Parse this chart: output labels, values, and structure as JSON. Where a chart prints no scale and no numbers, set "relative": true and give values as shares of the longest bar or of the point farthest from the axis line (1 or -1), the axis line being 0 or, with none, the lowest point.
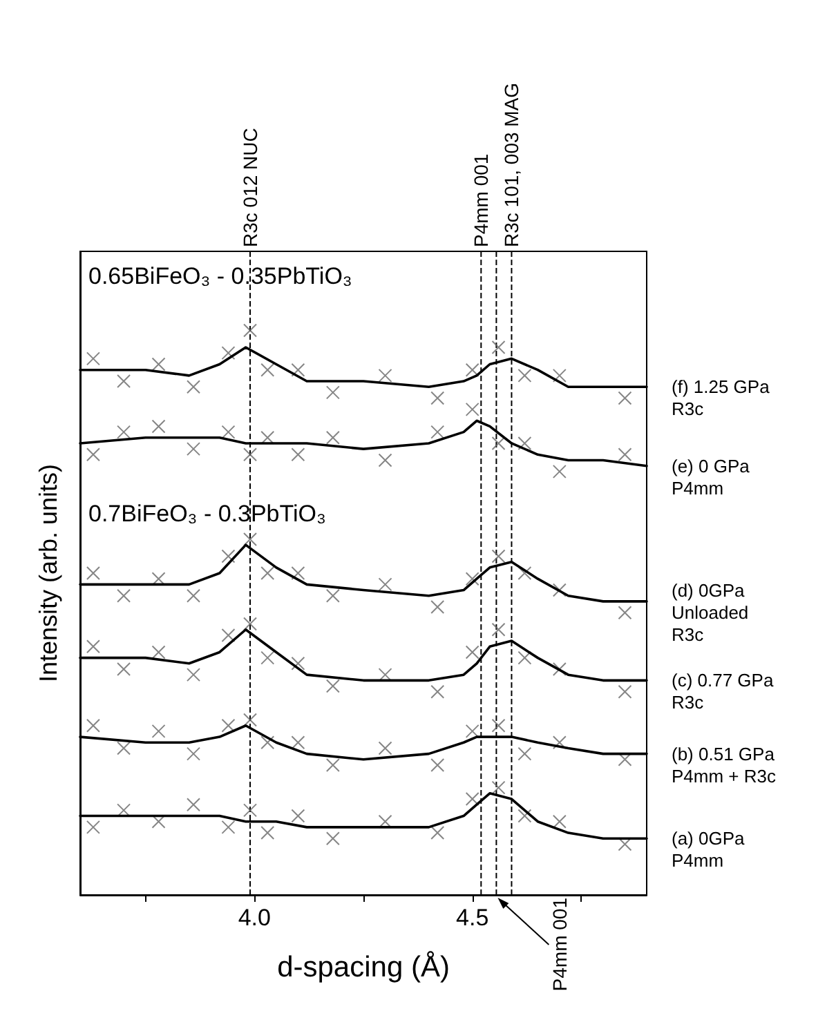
{
  "chart_data": {
    "type": "line",
    "relative": true,
    "xlabel": "d-spacing (Å)",
    "ylabel": "Intensity (arb. units)",
    "xlim": [
      3.6,
      4.9
    ],
    "xticks": [
      {
        "value": 3.75,
        "label": null
      },
      {
        "value": 4.0,
        "label": "4.0"
      },
      {
        "value": 4.25,
        "label": null
      },
      4.5,
      {
        "value": 4.75,
        "label": null
      }
    ],
    "x": [
      3.6,
      3.75,
      3.85,
      3.92,
      3.98,
      4.05,
      4.12,
      4.25,
      4.4,
      4.48,
      4.51,
      4.54,
      4.59,
      4.65,
      4.72,
      4.8,
      4.9
    ],
    "annotations": [
      "0.65BiFeO₃ - 0.35PbTiO₃",
      "0.7BiFeO₃ - 0.3PbTiO₃",
      "P4mm 001"
    ],
    "ref_lines": [
      {
        "axis": "x",
        "value": 3.99,
        "label": "R3c 012 NUC",
        "line_style": "dashed"
      },
      {
        "axis": "x",
        "value": 4.52,
        "label": "P4mm 001",
        "line_style": "dashed"
      },
      {
        "axis": "x",
        "value": 4.59,
        "label": "R3c 101, 003 MAG",
        "line_style": "dashed"
      },
      {
        "axis": "x",
        "value": 4.555,
        "line_style": "dashed"
      }
    ],
    "series": [
      {
        "type": "scatter",
        "marker": "cross",
        "color": "#666666",
        "x": [
          3.63,
          3.7,
          3.78,
          3.86,
          3.94,
          3.99,
          4.03,
          4.1,
          4.18,
          4.3,
          4.42,
          4.5,
          4.56,
          4.62,
          4.7,
          4.85
        ],
        "values": [
          0.95,
          0.91,
          0.94,
          0.9,
          0.96,
          1.0,
          0.93,
          0.93,
          0.89,
          0.92,
          0.88,
          0.93,
          0.97,
          0.92,
          0.92,
          0.88
        ]
      },
      {
        "type": "scatter",
        "marker": "cross",
        "color": "#666666",
        "x": [
          3.63,
          3.7,
          3.78,
          3.86,
          3.94,
          3.99,
          4.03,
          4.1,
          4.18,
          4.3,
          4.42,
          4.5,
          4.56,
          4.62,
          4.7,
          4.85
        ],
        "values": [
          0.78,
          0.82,
          0.83,
          0.79,
          0.82,
          0.78,
          0.81,
          0.78,
          0.81,
          0.77,
          0.82,
          0.86,
          0.8,
          0.8,
          0.75,
          0.78
        ]
      },
      {
        "type": "scatter",
        "marker": "cross",
        "color": "#666666",
        "x": [
          3.63,
          3.7,
          3.78,
          3.86,
          3.94,
          3.99,
          4.03,
          4.1,
          4.18,
          4.3,
          4.42,
          4.5,
          4.56,
          4.62,
          4.7,
          4.85
        ],
        "values": [
          0.57,
          0.53,
          0.56,
          0.53,
          0.6,
          0.63,
          0.57,
          0.57,
          0.53,
          0.55,
          0.51,
          0.56,
          0.6,
          0.57,
          0.54,
          0.5
        ]
      },
      {
        "type": "scatter",
        "marker": "cross",
        "color": "#666666",
        "x": [
          3.63,
          3.7,
          3.78,
          3.86,
          3.94,
          3.99,
          4.03,
          4.1,
          4.18,
          4.3,
          4.42,
          4.5,
          4.56,
          4.62,
          4.7,
          4.85
        ],
        "values": [
          0.44,
          0.4,
          0.43,
          0.39,
          0.46,
          0.48,
          0.42,
          0.41,
          0.37,
          0.39,
          0.36,
          0.43,
          0.47,
          0.42,
          0.4,
          0.36
        ]
      },
      {
        "type": "scatter",
        "marker": "cross",
        "color": "#666666",
        "x": [
          3.63,
          3.7,
          3.78,
          3.86,
          3.94,
          3.99,
          4.03,
          4.1,
          4.18,
          4.3,
          4.42,
          4.5,
          4.56,
          4.62,
          4.7,
          4.85
        ],
        "values": [
          0.3,
          0.26,
          0.29,
          0.25,
          0.3,
          0.31,
          0.27,
          0.27,
          0.23,
          0.26,
          0.23,
          0.29,
          0.3,
          0.25,
          0.27,
          0.24
        ]
      },
      {
        "type": "scatter",
        "marker": "cross",
        "color": "#666666",
        "x": [
          3.63,
          3.7,
          3.78,
          3.86,
          3.94,
          3.99,
          4.03,
          4.1,
          4.18,
          4.3,
          4.42,
          4.5,
          4.56,
          4.62,
          4.7,
          4.85
        ],
        "values": [
          0.12,
          0.15,
          0.13,
          0.16,
          0.12,
          0.15,
          0.11,
          0.14,
          0.1,
          0.13,
          0.11,
          0.17,
          0.19,
          0.14,
          0.13,
          0.09
        ]
      },
      {
        "name": "(f) 1.25 GPa\nR3c",
        "color": "#000000",
        "values": [
          0.93,
          0.93,
          0.92,
          0.94,
          0.97,
          0.94,
          0.91,
          0.91,
          0.9,
          0.91,
          0.92,
          0.94,
          0.95,
          0.93,
          0.9,
          0.9,
          0.9
        ]
      },
      {
        "name": "(e) 0 GPa\nP4mm",
        "color": "#000000",
        "values": [
          0.8,
          0.81,
          0.81,
          0.81,
          0.8,
          0.8,
          0.8,
          0.79,
          0.8,
          0.82,
          0.84,
          0.83,
          0.8,
          0.78,
          0.77,
          0.77,
          0.76
        ]
      },
      {
        "name": "(d) 0GPa\nUnloaded\nR3c",
        "color": "#000000",
        "values": [
          0.55,
          0.55,
          0.55,
          0.57,
          0.62,
          0.58,
          0.55,
          0.54,
          0.53,
          0.54,
          0.56,
          0.58,
          0.59,
          0.56,
          0.53,
          0.52,
          0.52
        ]
      },
      {
        "name": "(c) 0.77 GPa\nR3c",
        "color": "#000000",
        "values": [
          0.42,
          0.42,
          0.41,
          0.43,
          0.47,
          0.43,
          0.39,
          0.38,
          0.38,
          0.39,
          0.41,
          0.44,
          0.45,
          0.42,
          0.39,
          0.38,
          0.38
        ]
      },
      {
        "name": "(b) 0.51 GPa\nP4mm + R3c",
        "color": "#000000",
        "values": [
          0.28,
          0.27,
          0.27,
          0.28,
          0.3,
          0.27,
          0.25,
          0.24,
          0.25,
          0.27,
          0.28,
          0.28,
          0.28,
          0.27,
          0.26,
          0.25,
          0.25
        ]
      },
      {
        "name": "(a) 0GPa\nP4mm",
        "color": "#000000",
        "values": [
          0.14,
          0.14,
          0.14,
          0.14,
          0.13,
          0.13,
          0.12,
          0.12,
          0.12,
          0.14,
          0.16,
          0.18,
          0.17,
          0.13,
          0.11,
          0.1,
          0.1
        ]
      }
    ],
    "marker": "none",
    "line_style": "solid",
    "grid": false
  }
}
